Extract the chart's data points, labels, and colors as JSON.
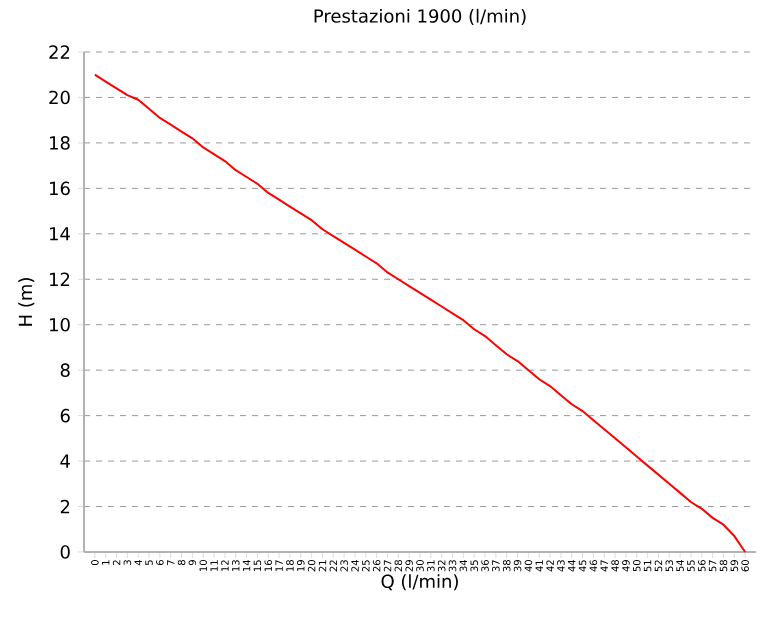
{
  "chart_data": {
    "type": "line",
    "title": "Prestazioni  1900 (l/min)",
    "xlabel": "Q (l/min)",
    "ylabel": "H (m)",
    "categories": [
      "0",
      "1",
      "2",
      "3",
      "4",
      "5",
      "6",
      "7",
      "8",
      "9",
      "10",
      "11",
      "12",
      "13",
      "14",
      "15",
      "16",
      "17",
      "18",
      "19",
      "20",
      "21",
      "22",
      "23",
      "24",
      "25",
      "26",
      "27",
      "28",
      "29",
      "30",
      "31",
      "32",
      "33",
      "34",
      "35",
      "36",
      "37",
      "38",
      "39",
      "40",
      "41",
      "42",
      "43",
      "44",
      "45",
      "46",
      "47",
      "48",
      "49",
      "50",
      "51",
      "52",
      "53",
      "54",
      "55",
      "56",
      "57",
      "58",
      "59",
      "60"
    ],
    "series": [
      {
        "color": "#ff0000",
        "values": [
          21.0,
          20.7,
          20.4,
          20.1,
          19.9,
          19.5,
          19.1,
          18.8,
          18.5,
          18.2,
          17.8,
          17.5,
          17.2,
          16.8,
          16.5,
          16.2,
          15.8,
          15.5,
          15.2,
          14.9,
          14.6,
          14.2,
          13.9,
          13.6,
          13.3,
          13.0,
          12.7,
          12.3,
          12.0,
          11.7,
          11.4,
          11.1,
          10.8,
          10.5,
          10.2,
          9.8,
          9.5,
          9.1,
          8.7,
          8.4,
          8.0,
          7.6,
          7.3,
          6.9,
          6.5,
          6.2,
          5.8,
          5.4,
          5.0,
          4.6,
          4.2,
          3.8,
          3.4,
          3.0,
          2.6,
          2.2,
          1.9,
          1.5,
          1.2,
          0.7,
          0.0
        ]
      }
    ],
    "ylim": [
      0,
      22
    ],
    "yticks": [
      0,
      2,
      4,
      6,
      8,
      10,
      12,
      14,
      16,
      18,
      20,
      22
    ],
    "grid": "y",
    "marker": "none",
    "line_style": "solid"
  }
}
